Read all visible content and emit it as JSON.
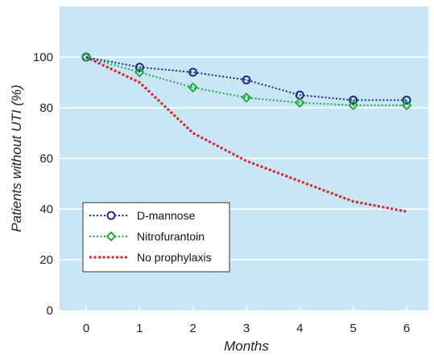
{
  "chart_data": {
    "type": "line",
    "xlabel": "Months",
    "ylabel": "Patients without UTI (%)",
    "x_ticks": [
      "0",
      "1",
      "2",
      "3",
      "4",
      "5",
      "6"
    ],
    "y_ticks": [
      "0",
      "20",
      "40",
      "60",
      "80",
      "100"
    ],
    "xlim": [
      0,
      6
    ],
    "ylim": [
      0,
      120
    ],
    "grid": "horizontal",
    "background_color": "#c8e6f5",
    "legend_position": "lower-left",
    "series": [
      {
        "name": "D-mannose",
        "color": "#1a2a80",
        "line_style": "dotted",
        "marker": "circle",
        "x": [
          0,
          1,
          2,
          3,
          4,
          5,
          6
        ],
        "y": [
          100,
          96,
          94,
          91,
          85,
          83,
          83
        ]
      },
      {
        "name": "Nitrofurantoin",
        "color": "#22aa44",
        "line_style": "dotted",
        "marker": "diamond",
        "x": [
          0,
          1,
          2,
          3,
          4,
          5,
          6
        ],
        "y": [
          100,
          94,
          88,
          84,
          82,
          81,
          81
        ]
      },
      {
        "name": "No prophylaxis",
        "color": "#e02020",
        "line_style": "dotted",
        "marker": "none",
        "x": [
          0,
          1,
          2,
          3,
          4,
          5,
          6
        ],
        "y": [
          100,
          90,
          70,
          59,
          51,
          43,
          39
        ]
      }
    ]
  }
}
